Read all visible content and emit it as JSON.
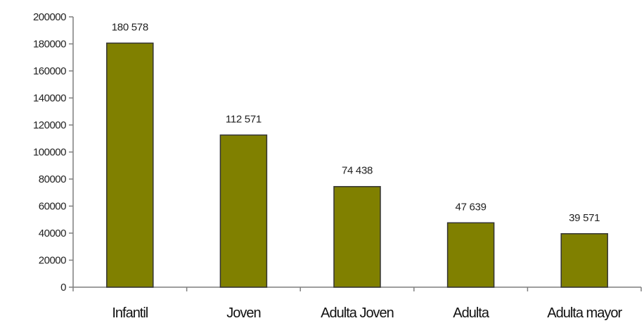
{
  "chart_data": {
    "type": "bar",
    "categories": [
      "Infantil",
      "Joven",
      "Adulta Joven",
      "Adulta",
      "Adulta mayor"
    ],
    "values": [
      180578,
      112571,
      74438,
      47639,
      39571
    ],
    "data_labels": [
      "180 578",
      "112 571",
      "74 438",
      "47 639",
      "39 571"
    ],
    "ylim": [
      0,
      200000
    ],
    "yticks": [
      0,
      20000,
      40000,
      60000,
      80000,
      100000,
      120000,
      140000,
      160000,
      180000,
      200000
    ],
    "ytick_labels": [
      "0",
      "20000",
      "40000",
      "60000",
      "80000",
      "100000",
      "120000",
      "140000",
      "160000",
      "180000",
      "200000"
    ],
    "grid": false,
    "legend": "none",
    "bar_color": "#808000"
  }
}
